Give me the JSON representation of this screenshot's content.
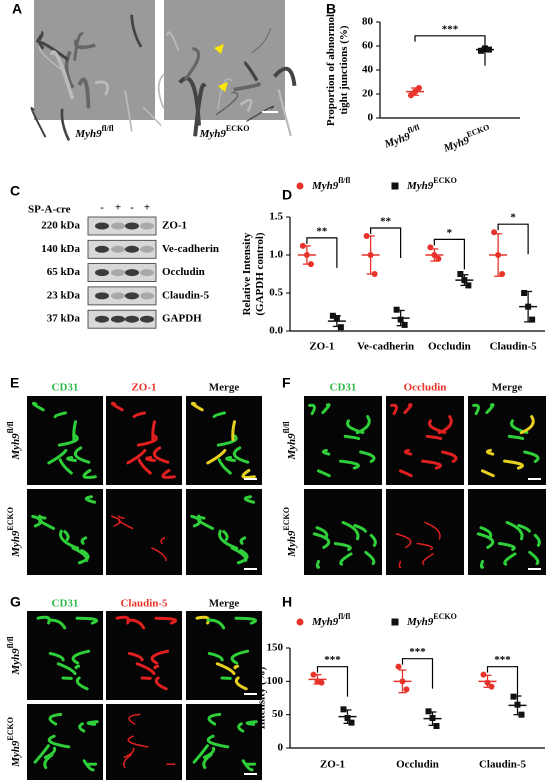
{
  "figure": {
    "labels": [
      "A",
      "B",
      "C",
      "D",
      "E",
      "F",
      "G",
      "H"
    ]
  },
  "em_captions": [
    {
      "gene": "Myh9",
      "sup": "fl/fl"
    },
    {
      "gene": "Myh9",
      "sup": "ECKO"
    }
  ],
  "blot": {
    "treatment": "SP-A-cre",
    "lanes": [
      "-",
      "+",
      "-",
      "+"
    ],
    "rows": [
      {
        "kda": "220 kDa",
        "protein": "ZO-1"
      },
      {
        "kda": "140 kDa",
        "protein": "Ve-cadherin"
      },
      {
        "kda": "65 kDa",
        "protein": "Occludin"
      },
      {
        "kda": "23 kDa",
        "protein": "Claudin-5"
      },
      {
        "kda": "37 kDa",
        "protein": "GAPDH"
      }
    ]
  },
  "fluorescence": [
    {
      "columns": [
        "CD31",
        "ZO-1",
        "Merge"
      ],
      "rows": [
        {
          "gene": "Myh9",
          "sup": "fl/fl"
        },
        {
          "gene": "Myh9",
          "sup": "ECKO"
        }
      ]
    },
    {
      "columns": [
        "CD31",
        "Occludin",
        "Merge"
      ],
      "rows": [
        {
          "gene": "Myh9",
          "sup": "fl/fl"
        },
        {
          "gene": "Myh9",
          "sup": "ECKO"
        }
      ]
    },
    {
      "columns": [
        "CD31",
        "Claudin-5",
        "Merge"
      ],
      "rows": [
        {
          "gene": "Myh9",
          "sup": "fl/fl"
        },
        {
          "gene": "Myh9",
          "sup": "ECKO"
        }
      ]
    }
  ],
  "chart_data": [
    {
      "type": "dotplot",
      "ylabel": [
        "Proportion of abnormol",
        "tight junctions (%)"
      ],
      "ylim": [
        0,
        80
      ],
      "yticks": [
        0,
        20,
        40,
        60,
        80
      ],
      "categories": [
        {
          "gene": "Myh9",
          "sup": "fl/fl"
        },
        {
          "gene": "Myh9",
          "sup": "ECKO"
        }
      ],
      "dodge": false,
      "legend": false,
      "series": [
        {
          "name": {
            "gene": "Myh9",
            "sup": "fl/fl"
          },
          "color": "#e8332a",
          "marker": "circle",
          "values": [
            [
              19,
              22,
              25
            ],
            null
          ],
          "means": [
            22,
            null
          ],
          "errors": [
            3,
            null
          ]
        },
        {
          "name": {
            "gene": "Myh9",
            "sup": "ECKO"
          },
          "color": "#111111",
          "marker": "square",
          "values": [
            null,
            [
              56,
              58,
              57
            ]
          ],
          "means": [
            null,
            57
          ],
          "errors": [
            null,
            1.5
          ]
        }
      ],
      "significance": [
        "***"
      ]
    },
    {
      "type": "dotplot",
      "ylabel": [
        "Relative Intensity",
        "(GAPDH control)"
      ],
      "ylim": [
        0,
        1.5
      ],
      "yticks": [
        {
          "value": 0,
          "label": "0.0"
        },
        {
          "value": 0.5,
          "label": "0.5"
        },
        {
          "value": 1,
          "label": "1.0"
        },
        {
          "value": 1.5,
          "label": "1.5"
        }
      ],
      "categories": [
        "ZO-1",
        "Ve-cadherin",
        "Occludin",
        "Claudin-5"
      ],
      "dodge": true,
      "legend": true,
      "series": [
        {
          "name": {
            "gene": "Myh9",
            "sup": "fl/fl"
          },
          "color": "#e8332a",
          "marker": "circle",
          "values": [
            [
              1.12,
              1.0,
              0.88
            ],
            [
              1.25,
              1.0,
              0.75
            ],
            [
              1.1,
              1.0,
              0.95
            ],
            [
              1.3,
              1.0,
              0.75
            ]
          ],
          "means": [
            1.0,
            1.0,
            1.0,
            1.0
          ],
          "errors": [
            0.12,
            0.25,
            0.08,
            0.28
          ]
        },
        {
          "name": {
            "gene": "Myh9",
            "sup": "ECKO"
          },
          "color": "#111111",
          "marker": "square",
          "values": [
            [
              0.2,
              0.17,
              0.05
            ],
            [
              0.28,
              0.15,
              0.08
            ],
            [
              0.75,
              0.67,
              0.6
            ],
            [
              0.5,
              0.32,
              0.15
            ]
          ],
          "means": [
            0.13,
            0.17,
            0.67,
            0.32
          ],
          "errors": [
            0.07,
            0.1,
            0.07,
            0.2
          ]
        }
      ],
      "significance": [
        "**",
        "**",
        "*",
        "*"
      ]
    },
    {
      "type": "dotplot",
      "ylabel": [
        "Intensity (%)"
      ],
      "ylim": [
        0,
        150
      ],
      "yticks": [
        0,
        50,
        100,
        150
      ],
      "categories": [
        "ZO-1",
        "Occludin",
        "Claudin-5"
      ],
      "dodge": true,
      "legend": true,
      "series": [
        {
          "name": {
            "gene": "Myh9",
            "sup": "fl/fl"
          },
          "color": "#e8332a",
          "marker": "circle",
          "values": [
            [
              110,
              100,
              98
            ],
            [
              122,
              100,
              88
            ],
            [
              110,
              98,
              92
            ]
          ],
          "means": [
            103,
            100,
            100
          ],
          "errors": [
            7,
            17,
            9
          ]
        },
        {
          "name": {
            "gene": "Myh9",
            "sup": "ECKO"
          },
          "color": "#111111",
          "marker": "square",
          "values": [
            [
              58,
              45,
              38
            ],
            [
              55,
              45,
              33
            ],
            [
              77,
              65,
              50
            ]
          ],
          "means": [
            47,
            44,
            64
          ],
          "errors": [
            10,
            10,
            14
          ]
        }
      ],
      "significance": [
        "***",
        "***",
        "***"
      ]
    }
  ]
}
